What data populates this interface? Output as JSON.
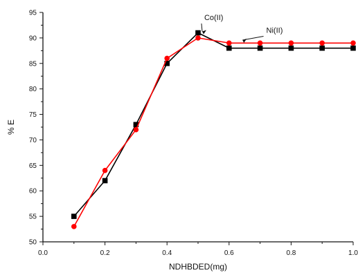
{
  "chart_data": {
    "type": "line",
    "title": "",
    "xlabel": "NDHBDED(mg)",
    "ylabel": "% E",
    "xlim": [
      0.0,
      1.0
    ],
    "ylim": [
      50,
      95
    ],
    "x_ticks": [
      0.0,
      0.2,
      0.4,
      0.6,
      0.8,
      1.0
    ],
    "x_tick_labels": [
      "0.0",
      "0.2",
      "0.4",
      "0.6",
      "0.8",
      "1.0"
    ],
    "y_ticks": [
      50,
      55,
      60,
      65,
      70,
      75,
      80,
      85,
      90,
      95
    ],
    "y_tick_labels": [
      "50",
      "55",
      "60",
      "65",
      "70",
      "75",
      "80",
      "85",
      "90",
      "95"
    ],
    "grid": false,
    "series": [
      {
        "name": "Co(II)",
        "color": "#000000",
        "marker": "square",
        "x": [
          0.1,
          0.2,
          0.3,
          0.4,
          0.5,
          0.6,
          0.7,
          0.8,
          0.9,
          1.0
        ],
        "y": [
          55,
          62,
          73,
          85,
          91,
          88,
          88,
          88,
          88,
          88
        ]
      },
      {
        "name": "Ni(II)",
        "color": "#ff0000",
        "marker": "circle",
        "x": [
          0.1,
          0.2,
          0.3,
          0.4,
          0.5,
          0.6,
          0.7,
          0.8,
          0.9,
          1.0
        ],
        "y": [
          53,
          64,
          72,
          86,
          90,
          89,
          89,
          89,
          89,
          89
        ]
      }
    ],
    "annotations": [
      {
        "text": "Co(II)",
        "x": 0.52,
        "y": 93.5,
        "point_x": 0.5,
        "point_y": 91
      },
      {
        "text": "Ni(II)",
        "x": 0.72,
        "y": 91.0,
        "point_x": 0.63,
        "point_y": 89.3
      }
    ]
  }
}
